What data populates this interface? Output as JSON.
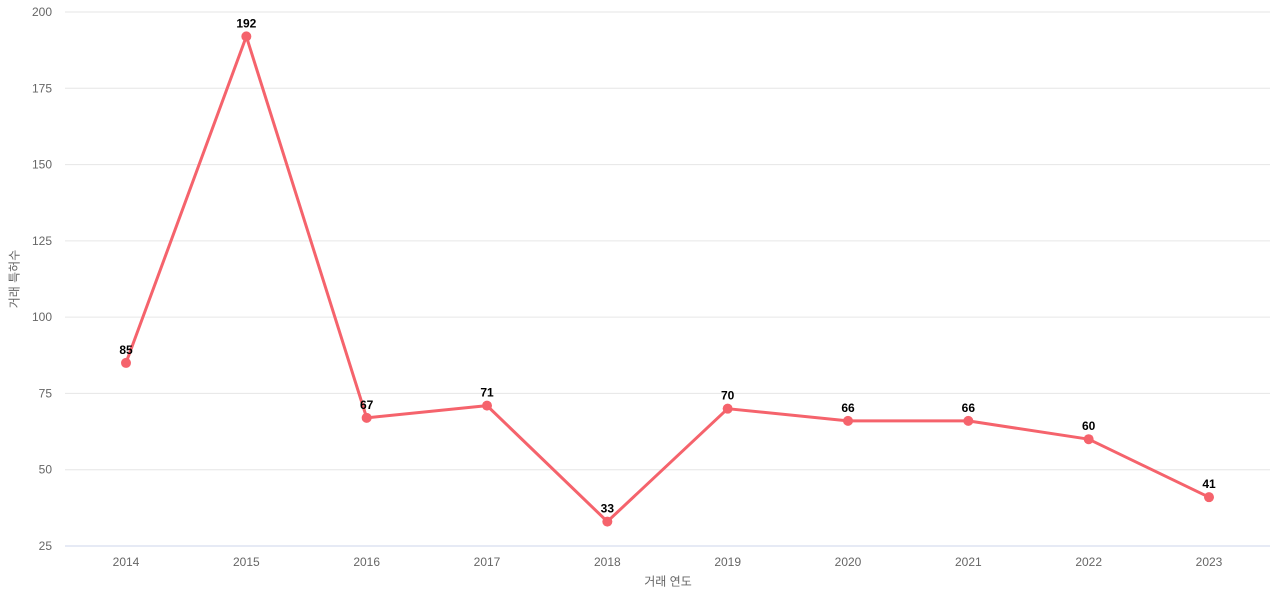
{
  "chart_data": {
    "type": "line",
    "title": "",
    "xlabel": "거래 연도",
    "ylabel": "거래 특허수",
    "categories": [
      "2014",
      "2015",
      "2016",
      "2017",
      "2018",
      "2019",
      "2020",
      "2021",
      "2022",
      "2023"
    ],
    "series": [
      {
        "name": "거래 특허수",
        "values": [
          85,
          192,
          67,
          71,
          33,
          70,
          66,
          66,
          60,
          41
        ]
      }
    ],
    "ylim": [
      25,
      200
    ],
    "yticks": [
      25,
      50,
      75,
      100,
      125,
      150,
      175,
      200
    ],
    "grid": true,
    "legend_position": "none",
    "marker": "circle",
    "value_labels_shown": true,
    "colors": {
      "line": "#f5636c",
      "marker": "#f5636c",
      "value_label": "#000000",
      "tick_label": "#666666",
      "axis_title": "#666666",
      "gridline": "#e6e6e6",
      "axis_line": "#ccd6eb",
      "background": "#ffffff"
    }
  }
}
